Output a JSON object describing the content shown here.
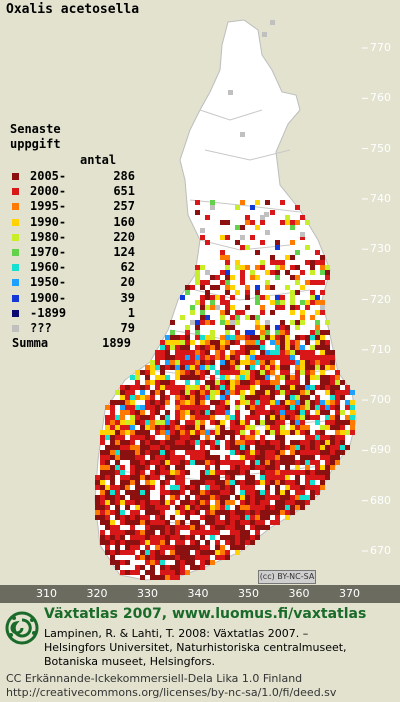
{
  "title": "Oxalis acetosella",
  "legend": {
    "heading_line1": "Senaste",
    "heading_line2": "uppgift",
    "count_header": "antal",
    "rows": [
      {
        "label": "2005-",
        "count": "286",
        "color": "#8b1010"
      },
      {
        "label": "2000-",
        "count": "651",
        "color": "#d81818"
      },
      {
        "label": "1995-",
        "count": "257",
        "color": "#ff7a00"
      },
      {
        "label": "1990-",
        "count": "160",
        "color": "#ffd200"
      },
      {
        "label": "1980-",
        "count": "220",
        "color": "#c8ee28"
      },
      {
        "label": "1970-",
        "count": "124",
        "color": "#62d24a"
      },
      {
        "label": "1960-",
        "count": "62",
        "color": "#18e0d0"
      },
      {
        "label": "1950-",
        "count": "20",
        "color": "#1ea0ff"
      },
      {
        "label": "1900-",
        "count": "39",
        "color": "#1238d8"
      },
      {
        "label": "-1899",
        "count": "1",
        "color": "#0a0a70"
      },
      {
        "label": "???",
        "count": "79",
        "color": "#c0c0c0"
      }
    ],
    "summa_label": "Summa",
    "summa_value": "1899"
  },
  "axes": {
    "y_ticks": [
      "770",
      "760",
      "750",
      "740",
      "730",
      "720",
      "710",
      "700",
      "690",
      "680",
      "670"
    ],
    "x_ticks": [
      "310",
      "320",
      "330",
      "340",
      "350",
      "360",
      "370"
    ]
  },
  "license_badge": "(cc) BY-NC-SA",
  "footer": {
    "heading": "Växtatlas 2007, www.luomus.fi/vaxtatlas",
    "line1": "Lampinen, R. & Lahti, T. 2008: Växtatlas 2007. –",
    "line2": "Helsingfors Universitet, Naturhistoriska centralmuseet,",
    "line3": "Botaniska museet, Helsingfors.",
    "cc_line1": "CC Erkännande-Ickekommersiell-Dela Lika 1.0 Finland",
    "cc_line2": "http://creativecommons.org/licenses/by-nc-sa/1.0/fi/deed.sv"
  },
  "colors": {
    "background": "#e2e2cf",
    "country_fill": "#ffffff",
    "axis_bar": "#6b6b60",
    "footer_heading": "#1a6b2a"
  }
}
